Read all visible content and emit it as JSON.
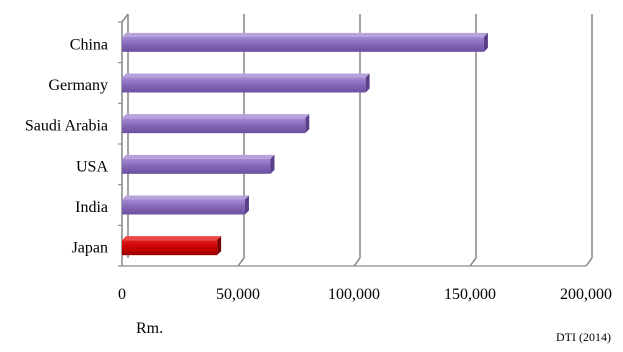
{
  "chart_data": {
    "type": "bar",
    "orientation": "horizontal",
    "categories": [
      "China",
      "Germany",
      "Saudi Arabia",
      "USA",
      "India",
      "Japan"
    ],
    "values": [
      156000,
      105000,
      79000,
      64000,
      53000,
      41000
    ],
    "bar_colors": [
      "#8a6bbf",
      "#8a6bbf",
      "#8a6bbf",
      "#8a6bbf",
      "#8a6bbf",
      "#cc0000"
    ],
    "xlim": [
      0,
      200000
    ],
    "xticks": [
      0,
      50000,
      100000,
      150000,
      200000
    ],
    "xtick_labels": [
      "0",
      "50,000",
      "100,000",
      "150,000",
      "200,000"
    ],
    "xlabel": "Rm.",
    "source": "DTI (2014)",
    "grid": true
  }
}
